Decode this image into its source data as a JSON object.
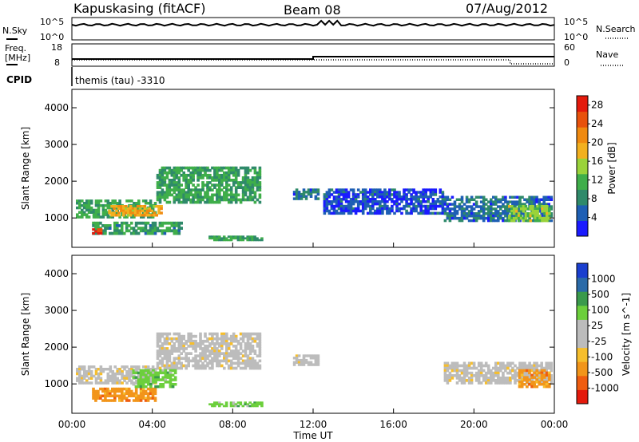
{
  "header": {
    "station": "Kapuskasing (fitACF)",
    "beam": "Beam 08",
    "date": "07/Aug/2012"
  },
  "noise_panel": {
    "left_label": "N.Sky",
    "right_label": "N.Search",
    "left_ticks": [
      "10^5",
      "10^0"
    ],
    "right_ticks": [
      "10^5",
      "10^0"
    ]
  },
  "freq_panel": {
    "left_label_line1": "Freq.",
    "left_label_line2": "[MHz]",
    "right_label": "Nave",
    "left_ticks": [
      "18",
      "8"
    ],
    "right_ticks": [
      "60",
      "0"
    ]
  },
  "cpid": {
    "label": "CPID",
    "value": "themis (tau) -3310"
  },
  "colors": {
    "power_scale": [
      "#1a1aff",
      "#1e5fb4",
      "#2f8a6a",
      "#3fae4a",
      "#9ad33a",
      "#f2b01f",
      "#f08a10",
      "#e8520c",
      "#e41a0c"
    ],
    "velocity_scale": [
      "#e41a0c",
      "#ef5d10",
      "#f2951a",
      "#f6be2c",
      "#bcbcbc",
      "#bcbcbc",
      "#6ccf3c",
      "#3a9a4c",
      "#2a6aa8",
      "#1a3fcf"
    ]
  },
  "chart_data": [
    {
      "type": "heatmap",
      "name": "power",
      "ylabel": "Slant Range [km]",
      "yticks": [
        "1000",
        "2000",
        "3000",
        "4000"
      ],
      "ylim": [
        200,
        4500
      ],
      "xlim": [
        0,
        24
      ],
      "colorbar_label": "Power [dB]",
      "colorbar_ticks": [
        "4",
        "8",
        "12",
        "16",
        "20",
        "24",
        "28"
      ],
      "colorbar_range": [
        0,
        30
      ],
      "regions": [
        {
          "t0": 0.2,
          "t1": 4.2,
          "r0": 1000,
          "r1": 1500,
          "level": 10
        },
        {
          "t0": 4.2,
          "t1": 9.4,
          "r0": 1400,
          "r1": 2400,
          "level": 10
        },
        {
          "t0": 1.0,
          "t1": 5.5,
          "r0": 550,
          "r1": 900,
          "level": 9
        },
        {
          "t0": 1.8,
          "t1": 4.5,
          "r0": 1050,
          "r1": 1350,
          "level": 19
        },
        {
          "t0": 1.0,
          "t1": 1.5,
          "r0": 560,
          "r1": 720,
          "level": 28
        },
        {
          "t0": 6.8,
          "t1": 9.5,
          "r0": 380,
          "r1": 520,
          "level": 10
        },
        {
          "t0": 11.0,
          "t1": 12.3,
          "r0": 1500,
          "r1": 1800,
          "level": 6
        },
        {
          "t0": 12.5,
          "t1": 18.5,
          "r0": 1100,
          "r1": 1800,
          "level": 4
        },
        {
          "t0": 18.5,
          "t1": 23.9,
          "r0": 900,
          "r1": 1600,
          "level": 6
        },
        {
          "t0": 21.7,
          "t1": 23.8,
          "r0": 900,
          "r1": 1350,
          "level": 14
        }
      ]
    },
    {
      "type": "heatmap",
      "name": "velocity",
      "xlabel": "Time UT",
      "ylabel": "Slant Range [km]",
      "yticks": [
        "1000",
        "2000",
        "3000",
        "4000"
      ],
      "ylim": [
        200,
        4500
      ],
      "xlim": [
        0,
        24
      ],
      "xticks": [
        "00:00",
        "04:00",
        "08:00",
        "12:00",
        "16:00",
        "20:00",
        "00:00"
      ],
      "colorbar_label": "Velocity [m s^-1]",
      "colorbar_ticks": [
        "1000",
        "500",
        "100",
        "25",
        "-25",
        "-100",
        "-500",
        "-1000"
      ],
      "regions": [
        {
          "t0": 0.2,
          "t1": 4.2,
          "r0": 1000,
          "r1": 1500,
          "level": 4
        },
        {
          "t0": 4.2,
          "t1": 9.4,
          "r0": 1400,
          "r1": 2400,
          "level": 4
        },
        {
          "t0": 1.0,
          "t1": 4.2,
          "r0": 520,
          "r1": 900,
          "level": 2
        },
        {
          "t0": 3.0,
          "t1": 5.2,
          "r0": 900,
          "r1": 1400,
          "level": 6
        },
        {
          "t0": 6.8,
          "t1": 9.5,
          "r0": 380,
          "r1": 520,
          "level": 6
        },
        {
          "t0": 11.0,
          "t1": 12.3,
          "r0": 1500,
          "r1": 1800,
          "level": 4
        },
        {
          "t0": 18.5,
          "t1": 23.9,
          "r0": 1000,
          "r1": 1600,
          "level": 4
        },
        {
          "t0": 22.2,
          "t1": 23.8,
          "r0": 900,
          "r1": 1400,
          "level": 2
        }
      ]
    }
  ]
}
